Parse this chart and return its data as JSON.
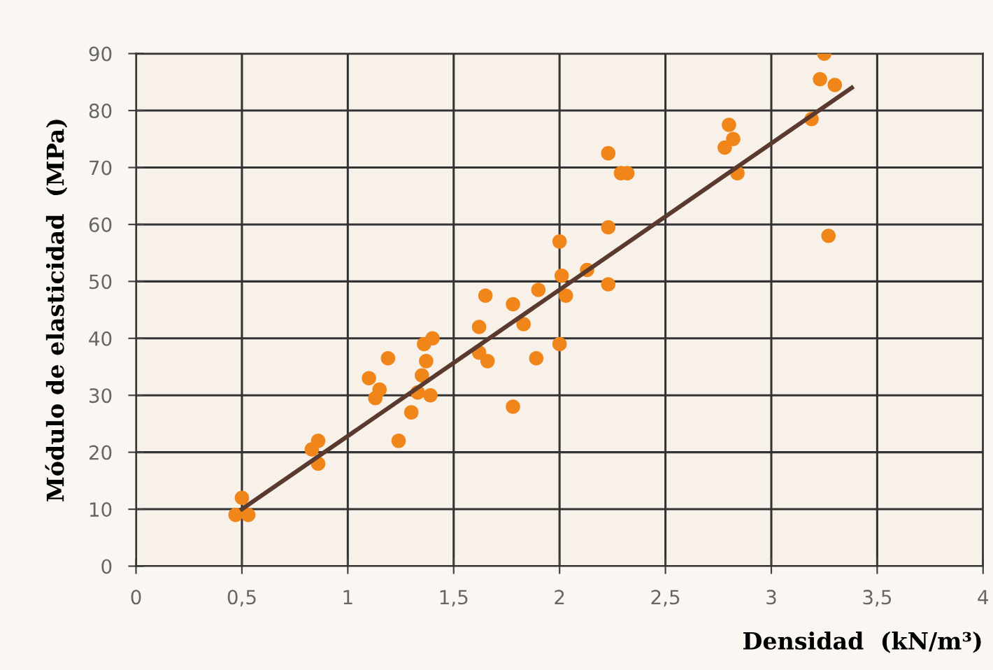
{
  "chart_data": {
    "type": "scatter",
    "xlabel": "Densidad  (kN/m³)",
    "ylabel": "Módulo de elasticidad  (MPa)",
    "xlim": [
      0,
      4
    ],
    "ylim": [
      0,
      90
    ],
    "xticks": [
      {
        "value": 0,
        "label": "0"
      },
      {
        "value": 0.5,
        "label": "0,5"
      },
      {
        "value": 1,
        "label": "1"
      },
      {
        "value": 1.5,
        "label": "1,5"
      },
      {
        "value": 2,
        "label": "2"
      },
      {
        "value": 2.5,
        "label": "2,5"
      },
      {
        "value": 3,
        "label": "3"
      },
      {
        "value": 3.5,
        "label": "3,5"
      },
      {
        "value": 4,
        "label": "4"
      }
    ],
    "yticks": [
      0,
      10,
      20,
      30,
      40,
      50,
      60,
      70,
      80,
      90
    ],
    "grid": true,
    "marker": "circle",
    "series": [
      {
        "color": "#f08519",
        "x": [
          0.47,
          0.53,
          0.5,
          0.83,
          0.86,
          0.86,
          1.1,
          1.13,
          1.15,
          1.19,
          1.24,
          1.3,
          1.33,
          1.35,
          1.36,
          1.37,
          1.39,
          1.4,
          1.62,
          1.62,
          1.66,
          1.65,
          1.78,
          1.78,
          1.83,
          1.89,
          1.9,
          2.0,
          2.0,
          2.01,
          2.03,
          2.13,
          2.23,
          2.23,
          2.23,
          2.29,
          2.32,
          2.78,
          2.8,
          2.82,
          2.84,
          3.19,
          3.23,
          3.25,
          3.27,
          3.3
        ],
        "values": [
          9,
          9,
          12,
          20.5,
          22,
          18,
          33,
          29.5,
          31,
          36.5,
          22,
          27,
          30.5,
          33.5,
          39,
          36,
          30,
          40,
          42,
          37.5,
          36,
          47.5,
          28,
          46,
          42.5,
          36.5,
          48.5,
          57,
          39,
          51,
          47.5,
          52,
          72.5,
          59.5,
          49.5,
          69,
          69,
          73.5,
          77.5,
          75,
          69,
          78.5,
          85.5,
          90,
          58,
          84.5
        ]
      },
      {
        "type": "line",
        "color": "#5a3a2e",
        "marker": "none",
        "x": [
          0.5,
          3.38
        ],
        "values": [
          10,
          84
        ]
      }
    ]
  }
}
